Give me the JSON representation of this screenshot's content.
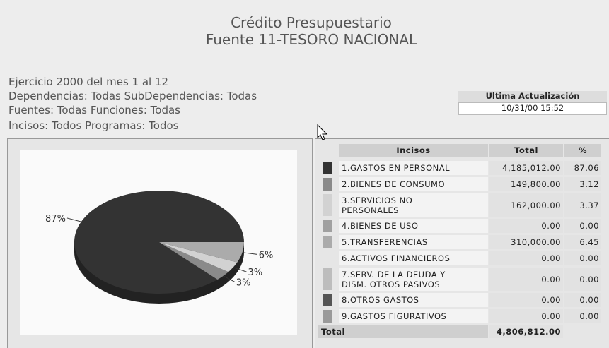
{
  "header": {
    "title": "Crédito Presupuestario",
    "subtitle": "Fuente 11-TESORO NACIONAL"
  },
  "filters": [
    "Ejercicio 2000 del mes 1 al 12",
    "Dependencias: Todas   SubDependencias: Todas",
    "Fuentes: Todas   Funciones: Todas",
    "Incisos: Todos   Programas: Todos"
  ],
  "update": {
    "label": "Ultima Actualización",
    "value": "10/31/00 15:52"
  },
  "table": {
    "header": [
      "Incisos",
      "Total",
      "%"
    ],
    "rows": [
      {
        "name": "1.GASTOS EN PERSONAL",
        "total": "4,185,012.00",
        "percent": "87.06",
        "color": "#333333"
      },
      {
        "name": "2.BIENES DE CONSUMO",
        "total": "149,800.00",
        "percent": "3.12",
        "color": "#8a8a8a"
      },
      {
        "name": "3.SERVICIOS NO\nPERSONALES",
        "total": "162,000.00",
        "percent": "3.37",
        "color": "#d2d2d2"
      },
      {
        "name": "4.BIENES DE USO",
        "total": "0.00",
        "percent": "0.00",
        "color": "#a0a0a0"
      },
      {
        "name": "5.TRANSFERENCIAS",
        "total": "310,000.00",
        "percent": "6.45",
        "color": "#ababab"
      },
      {
        "name": "6.ACTIVOS FINANCIEROS",
        "total": "0.00",
        "percent": "0.00"
      },
      {
        "name": "7.SERV. DE LA DEUDA Y\nDISM. OTROS PASIVOS",
        "total": "0.00",
        "percent": "0.00",
        "color": "#bdbdbd"
      },
      {
        "name": "8.OTROS GASTOS",
        "total": "0.00",
        "percent": "0.00",
        "color": "#555555"
      },
      {
        "name": "9.GASTOS FIGURATIVOS",
        "total": "0.00",
        "percent": "0.00",
        "color": "#9a9a9a"
      }
    ],
    "footer": [
      "Total",
      "4,806,812.00"
    ]
  },
  "chart_data": {
    "type": "pie",
    "values": [
      87.06,
      3.12,
      3.37,
      6.45
    ],
    "value_labels": [
      "87%",
      "3%",
      "3%",
      "6%"
    ],
    "colors": [
      "#333333",
      "#8a8a8a",
      "#d2d2d2",
      "#ababab"
    ]
  }
}
